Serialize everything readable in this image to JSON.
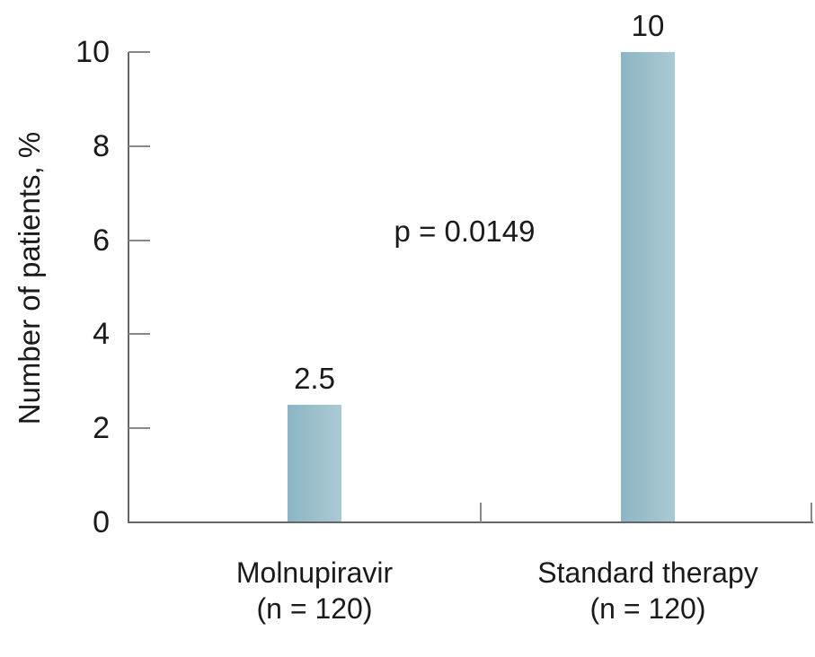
{
  "chart_data": {
    "type": "bar",
    "title": "",
    "xlabel": "",
    "ylabel": "Number of patients, %",
    "ylim": [
      0,
      10
    ],
    "yticks": [
      "0",
      "2",
      "4",
      "6",
      "8",
      "10"
    ],
    "ytick_values": [
      0,
      2,
      4,
      6,
      8,
      10
    ],
    "categories": [
      {
        "label": "Molnupiravir",
        "sublabel": "(n = 120)"
      },
      {
        "label": "Standard therapy",
        "sublabel": "(n = 120)"
      }
    ],
    "values": [
      2.5,
      10
    ],
    "value_labels": [
      "2.5",
      "10"
    ],
    "annotation": "p = 0.0149",
    "grid": false,
    "legend": null,
    "colors": {
      "bar_gradient_start": "#8cb5c4",
      "bar_gradient_end": "#aacad3",
      "axis": "#666666",
      "tick": "#888888",
      "text": "#1a1a1a"
    }
  }
}
